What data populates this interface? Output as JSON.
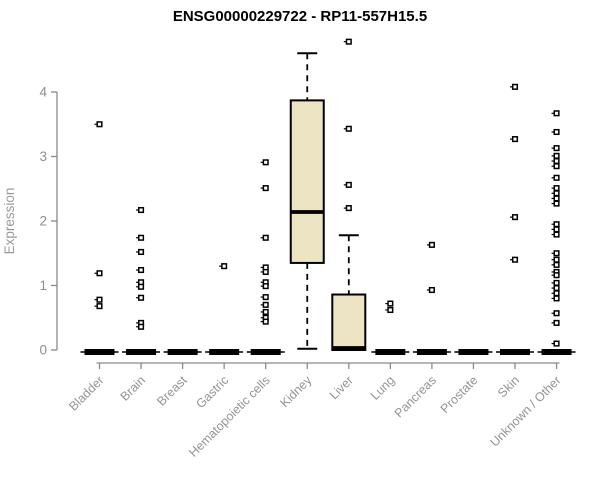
{
  "chart_data": {
    "type": "boxplot",
    "title": "ENSG00000229722 - RP11-557H15.5",
    "ylabel": "Expression",
    "xlabel": "",
    "ylim": [
      0,
      4.8
    ],
    "yticks": [
      0,
      1,
      2,
      3,
      4
    ],
    "grid": false,
    "legend": "none",
    "colors": {
      "box_fill": "#ede4c4",
      "box_border": "#000000",
      "median": "#000000",
      "whisker": "#000000",
      "outlier_stroke": "#000000",
      "outlier_fill": "#ffffff",
      "axis": "#8a8a8a",
      "tick_label": "#8f8f8f",
      "title": "#000000",
      "background": "#ffffff"
    },
    "categories": [
      "Bladder",
      "Brain",
      "Breast",
      "Gastric",
      "Hematopoietic cells",
      "Kidney",
      "Liver",
      "Lung",
      "Pancreas",
      "Prostate",
      "Skin",
      "Unknown / Other"
    ],
    "series": [
      {
        "name": "Bladder",
        "low": 0,
        "q1": 0,
        "median": 0,
        "q3": 0,
        "high": 0,
        "outliers": [
          3.5,
          1.19,
          0.78,
          0.68
        ]
      },
      {
        "name": "Brain",
        "low": 0,
        "q1": 0,
        "median": 0,
        "q3": 0,
        "high": 0,
        "outliers": [
          2.17,
          1.74,
          1.52,
          1.24,
          1.05,
          0.98,
          0.81,
          0.42,
          0.36
        ]
      },
      {
        "name": "Breast",
        "low": 0,
        "q1": 0,
        "median": 0,
        "q3": 0,
        "high": 0,
        "outliers": []
      },
      {
        "name": "Gastric",
        "low": 0,
        "q1": 0,
        "median": 0,
        "q3": 0,
        "high": 0,
        "outliers": [
          1.3
        ]
      },
      {
        "name": "Hematopoietic cells",
        "low": 0,
        "q1": 0,
        "median": 0,
        "q3": 0,
        "high": 0,
        "outliers": [
          2.91,
          2.51,
          1.74,
          1.28,
          1.21,
          1.05,
          0.99,
          0.82,
          0.7,
          0.59,
          0.5,
          0.44
        ]
      },
      {
        "name": "Kidney",
        "low": 0.02,
        "q1": 1.35,
        "median": 2.14,
        "q3": 3.87,
        "high": 4.6,
        "outliers": []
      },
      {
        "name": "Liver",
        "low": 0,
        "q1": 0,
        "median": 0.03,
        "q3": 0.86,
        "high": 1.78,
        "outliers": [
          4.78,
          3.43,
          2.56,
          2.2
        ]
      },
      {
        "name": "Lung",
        "low": 0,
        "q1": 0,
        "median": 0,
        "q3": 0,
        "high": 0,
        "outliers": [
          0.72,
          0.62
        ]
      },
      {
        "name": "Pancreas",
        "low": 0,
        "q1": 0,
        "median": 0,
        "q3": 0,
        "high": 0,
        "outliers": [
          1.63,
          0.93
        ]
      },
      {
        "name": "Prostate",
        "low": 0,
        "q1": 0,
        "median": 0,
        "q3": 0,
        "high": 0,
        "outliers": []
      },
      {
        "name": "Skin",
        "low": 0,
        "q1": 0,
        "median": 0,
        "q3": 0,
        "high": 0,
        "outliers": [
          4.08,
          3.27,
          2.06,
          1.4
        ]
      },
      {
        "name": "Unknown / Other",
        "low": 0,
        "q1": 0,
        "median": 0,
        "q3": 0,
        "high": 0,
        "outliers": [
          3.67,
          3.38,
          3.13,
          3.01,
          2.93,
          2.85,
          2.67,
          2.51,
          2.43,
          2.35,
          2.27,
          1.95,
          1.87,
          1.79,
          1.5,
          1.4,
          1.32,
          1.21,
          1.16,
          1.04,
          0.96,
          0.88,
          0.8,
          0.57,
          0.42,
          0.1
        ]
      }
    ]
  }
}
